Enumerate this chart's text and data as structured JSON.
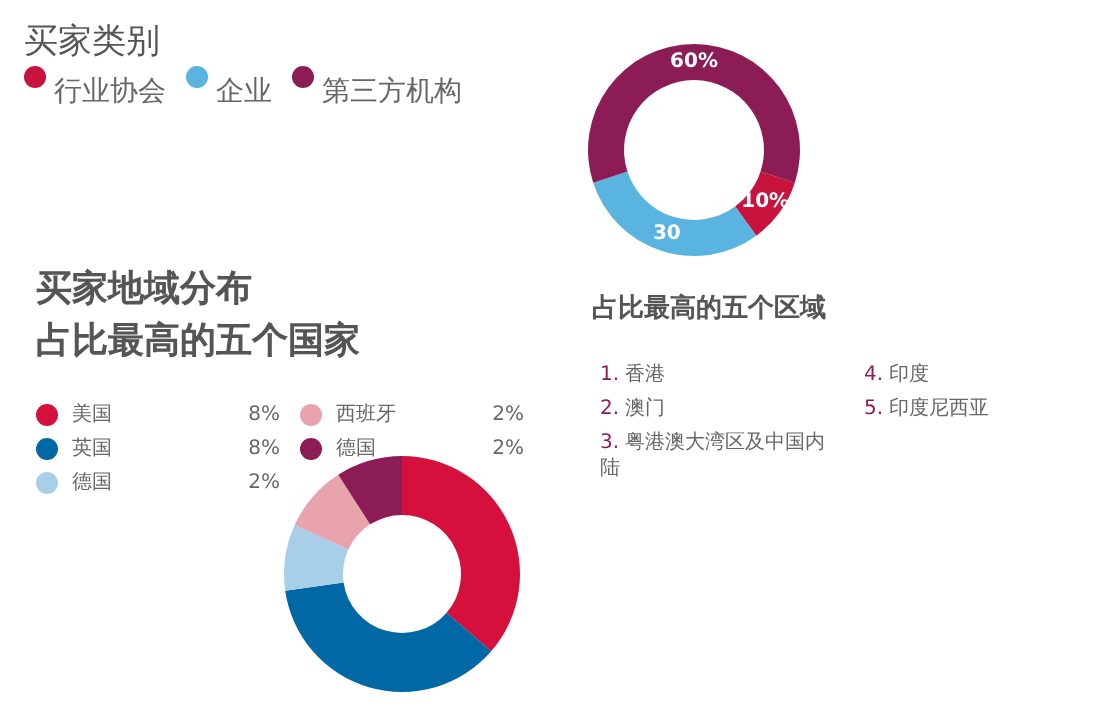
{
  "chart_data": [
    {
      "type": "donut",
      "title": "买家类别",
      "categories": [
        "行业协会",
        "企业",
        "第三方机构"
      ],
      "values": [
        10,
        30,
        60
      ],
      "colors": [
        "#c8143c",
        "#5ab4e0",
        "#8c1c55"
      ],
      "value_labels": [
        "10%",
        "30",
        "60%"
      ],
      "legend": "top left"
    },
    {
      "type": "donut",
      "title": "买家地域分布",
      "subtitle": "占比最高的五个国家",
      "categories": [
        "美国",
        "英国",
        "德国",
        "西班牙",
        "德国"
      ],
      "values": [
        8,
        8,
        2,
        2,
        2
      ],
      "colors": [
        "#d6103c",
        "#0068a5",
        "#a8cfe8",
        "#e8a3ac",
        "#8c1c55"
      ],
      "value_labels": [
        "8%",
        "8%",
        "2%",
        "2%",
        "2%"
      ],
      "legend": "top left"
    },
    {
      "type": "other",
      "title": "占比最高的五个区域",
      "annotations": [
        "1. 香港",
        "2. 澳门",
        "3. 粤港澳大湾区及中国内陆",
        "4. 印度",
        "5. 印度尼西亚"
      ]
    }
  ]
}
